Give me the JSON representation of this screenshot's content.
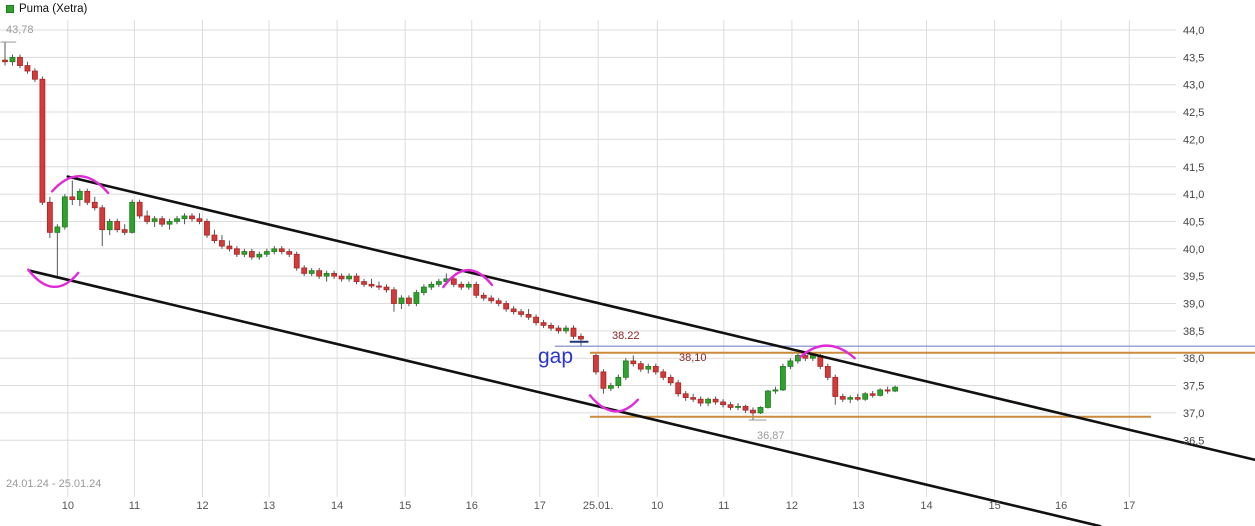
{
  "legend": {
    "title": "Puma (Xetra)"
  },
  "annotations": {
    "high_label": "43,78",
    "low_label": "36,87",
    "gap_label": "gap",
    "blue_level_label": "38.22",
    "orange_level_label": "38,10",
    "date_range": "24.01.24 - 25.01.24"
  },
  "chart_data": {
    "type": "candlestick",
    "title": "Puma (Xetra)",
    "timeframe_shown": "24.01.24 - 25.01.24",
    "legend_position": "top-left",
    "grid": true,
    "ylim": [
      35.9,
      44.15
    ],
    "y_axis": {
      "ticks": [
        {
          "v": 44.0,
          "text": "44,0"
        },
        {
          "v": 43.5,
          "text": "43,5"
        },
        {
          "v": 43.0,
          "text": "43,0"
        },
        {
          "v": 42.5,
          "text": "42,5"
        },
        {
          "v": 42.0,
          "text": "42,0"
        },
        {
          "v": 41.5,
          "text": "41,5"
        },
        {
          "v": 41.0,
          "text": "41,0"
        },
        {
          "v": 40.5,
          "text": "40,5"
        },
        {
          "v": 40.0,
          "text": "40,0"
        },
        {
          "v": 39.5,
          "text": "39,5"
        },
        {
          "v": 39.0,
          "text": "39,0"
        },
        {
          "v": 38.5,
          "text": "38,5"
        },
        {
          "v": 38.0,
          "text": "38,0"
        },
        {
          "v": 37.5,
          "text": "37,5"
        },
        {
          "v": 37.0,
          "text": "37,0"
        },
        {
          "v": 36.5,
          "text": "36,5"
        }
      ]
    },
    "x_axis": {
      "labels": [
        {
          "text": "10",
          "pos": 8.4
        },
        {
          "text": "11",
          "pos": 17.3
        },
        {
          "text": "12",
          "pos": 26.4
        },
        {
          "text": "13",
          "pos": 35.3
        },
        {
          "text": "14",
          "pos": 44.4
        },
        {
          "text": "15",
          "pos": 53.5
        },
        {
          "text": "16",
          "pos": 62.4
        },
        {
          "text": "17",
          "pos": 71.5
        },
        {
          "text": "25.01.",
          "pos": 79.3
        },
        {
          "text": "10",
          "pos": 87.2
        },
        {
          "text": "11",
          "pos": 96.1
        },
        {
          "text": "12",
          "pos": 105.2
        },
        {
          "text": "13",
          "pos": 114.1
        },
        {
          "text": "14",
          "pos": 123.2
        },
        {
          "text": "15",
          "pos": 132.3
        },
        {
          "text": "16",
          "pos": 141.2
        },
        {
          "text": "17",
          "pos": 150.3
        }
      ]
    },
    "colors": {
      "up": "#2fa12f",
      "up_stroke": "#1e7e1e",
      "down": "#d23b3b",
      "down_stroke": "#a82626",
      "wick": "#555555",
      "grid": "#dcdcdc",
      "trend": "#111111",
      "arc": "#e02ad8",
      "blue_line": "#7a86c8",
      "navy_tick": "#223377",
      "orange_line": "#cc8a3d",
      "tick_gray": "#999999",
      "axis_text": "#444444",
      "x_text": "#555555"
    },
    "candles": [
      [
        0,
        43.45,
        43.78,
        43.35,
        43.42
      ],
      [
        1,
        43.42,
        43.55,
        43.35,
        43.5
      ],
      [
        2,
        43.5,
        43.55,
        43.3,
        43.35
      ],
      [
        3,
        43.35,
        43.42,
        43.2,
        43.25
      ],
      [
        4,
        43.25,
        43.3,
        43.05,
        43.1
      ],
      [
        5,
        43.1,
        43.15,
        40.8,
        40.85
      ],
      [
        6,
        40.85,
        40.95,
        40.2,
        40.3
      ],
      [
        7,
        40.3,
        40.45,
        39.5,
        40.4
      ],
      [
        8,
        40.4,
        41.0,
        40.35,
        40.95
      ],
      [
        9,
        40.95,
        41.25,
        40.8,
        40.9
      ],
      [
        10,
        40.9,
        41.1,
        40.78,
        41.05
      ],
      [
        11,
        41.05,
        41.1,
        40.8,
        40.85
      ],
      [
        12,
        40.85,
        40.95,
        40.7,
        40.75
      ],
      [
        13,
        40.75,
        40.8,
        40.05,
        40.35
      ],
      [
        14,
        40.35,
        40.55,
        40.25,
        40.5
      ],
      [
        15,
        40.5,
        40.55,
        40.3,
        40.35
      ],
      [
        16,
        40.35,
        40.45,
        40.25,
        40.3
      ],
      [
        17,
        40.3,
        40.9,
        40.28,
        40.85
      ],
      [
        18,
        40.85,
        40.9,
        40.55,
        40.6
      ],
      [
        19,
        40.6,
        40.7,
        40.45,
        40.5
      ],
      [
        20,
        40.5,
        40.6,
        40.4,
        40.55
      ],
      [
        21,
        40.55,
        40.6,
        40.4,
        40.45
      ],
      [
        22,
        40.45,
        40.55,
        40.35,
        40.5
      ],
      [
        23,
        40.5,
        40.6,
        40.45,
        40.55
      ],
      [
        24,
        40.55,
        40.65,
        40.45,
        40.6
      ],
      [
        25,
        40.6,
        40.65,
        40.5,
        40.55
      ],
      [
        26,
        40.55,
        40.65,
        40.45,
        40.5
      ],
      [
        27,
        40.5,
        40.55,
        40.2,
        40.25
      ],
      [
        28,
        40.25,
        40.35,
        40.1,
        40.15
      ],
      [
        29,
        40.15,
        40.25,
        40.0,
        40.05
      ],
      [
        30,
        40.05,
        40.15,
        39.95,
        40.0
      ],
      [
        31,
        40.0,
        40.05,
        39.85,
        39.9
      ],
      [
        32,
        39.9,
        40.0,
        39.85,
        39.95
      ],
      [
        33,
        39.95,
        40.0,
        39.8,
        39.85
      ],
      [
        34,
        39.85,
        39.95,
        39.8,
        39.9
      ],
      [
        35,
        39.9,
        40.0,
        39.85,
        39.95
      ],
      [
        36,
        39.95,
        40.05,
        39.9,
        40.0
      ],
      [
        37,
        40.0,
        40.05,
        39.9,
        39.95
      ],
      [
        38,
        39.95,
        40.0,
        39.85,
        39.9
      ],
      [
        39,
        39.9,
        39.95,
        39.6,
        39.65
      ],
      [
        40,
        39.65,
        39.7,
        39.5,
        39.55
      ],
      [
        41,
        39.55,
        39.65,
        39.5,
        39.6
      ],
      [
        42,
        39.6,
        39.65,
        39.45,
        39.5
      ],
      [
        43,
        39.5,
        39.6,
        39.4,
        39.55
      ],
      [
        44,
        39.55,
        39.6,
        39.45,
        39.5
      ],
      [
        45,
        39.5,
        39.55,
        39.4,
        39.45
      ],
      [
        46,
        39.45,
        39.55,
        39.4,
        39.5
      ],
      [
        47,
        39.5,
        39.55,
        39.35,
        39.4
      ],
      [
        48,
        39.4,
        39.45,
        39.3,
        39.35
      ],
      [
        49,
        39.35,
        39.45,
        39.28,
        39.32
      ],
      [
        50,
        39.32,
        39.4,
        39.25,
        39.3
      ],
      [
        51,
        39.3,
        39.35,
        39.2,
        39.25
      ],
      [
        52,
        39.25,
        39.3,
        38.85,
        39.0
      ],
      [
        53,
        39.0,
        39.15,
        38.9,
        39.1
      ],
      [
        54,
        39.1,
        39.15,
        38.95,
        39.0
      ],
      [
        55,
        39.0,
        39.25,
        38.95,
        39.2
      ],
      [
        56,
        39.2,
        39.35,
        39.15,
        39.3
      ],
      [
        57,
        39.3,
        39.4,
        39.25,
        39.35
      ],
      [
        58,
        39.35,
        39.45,
        39.3,
        39.4
      ],
      [
        59,
        39.4,
        39.55,
        39.35,
        39.45
      ],
      [
        60,
        39.45,
        39.5,
        39.3,
        39.35
      ],
      [
        61,
        39.35,
        39.4,
        39.25,
        39.3
      ],
      [
        62,
        39.3,
        39.4,
        39.25,
        39.35
      ],
      [
        63,
        39.35,
        39.4,
        39.1,
        39.15
      ],
      [
        64,
        39.15,
        39.2,
        39.05,
        39.1
      ],
      [
        65,
        39.1,
        39.15,
        39.0,
        39.05
      ],
      [
        66,
        39.05,
        39.1,
        38.95,
        39.0
      ],
      [
        67,
        39.0,
        39.05,
        38.85,
        38.9
      ],
      [
        68,
        38.9,
        38.95,
        38.8,
        38.85
      ],
      [
        69,
        38.85,
        38.9,
        38.75,
        38.8
      ],
      [
        70,
        38.8,
        38.9,
        38.7,
        38.75
      ],
      [
        71,
        38.75,
        38.8,
        38.6,
        38.65
      ],
      [
        72,
        38.65,
        38.7,
        38.55,
        38.6
      ],
      [
        73,
        38.6,
        38.65,
        38.5,
        38.55
      ],
      [
        74,
        38.55,
        38.6,
        38.45,
        38.5
      ],
      [
        75,
        38.5,
        38.6,
        38.45,
        38.55
      ],
      [
        76,
        38.55,
        38.6,
        38.35,
        38.4
      ],
      [
        77,
        38.4,
        38.45,
        38.22,
        38.35
      ],
      [
        79,
        38.05,
        38.08,
        37.7,
        37.75
      ],
      [
        80,
        37.75,
        37.8,
        37.35,
        37.45
      ],
      [
        81,
        37.45,
        37.55,
        37.4,
        37.5
      ],
      [
        82,
        37.5,
        37.7,
        37.45,
        37.65
      ],
      [
        83,
        37.65,
        38.0,
        37.6,
        37.95
      ],
      [
        84,
        37.95,
        38.05,
        37.85,
        37.9
      ],
      [
        85,
        37.9,
        37.95,
        37.75,
        37.8
      ],
      [
        86,
        37.8,
        37.9,
        37.72,
        37.85
      ],
      [
        87,
        37.85,
        37.9,
        37.7,
        37.75
      ],
      [
        88,
        37.75,
        37.8,
        37.6,
        37.65
      ],
      [
        89,
        37.65,
        37.7,
        37.5,
        37.55
      ],
      [
        90,
        37.55,
        37.6,
        37.3,
        37.35
      ],
      [
        91,
        37.35,
        37.4,
        37.22,
        37.28
      ],
      [
        92,
        37.28,
        37.35,
        37.2,
        37.25
      ],
      [
        93,
        37.25,
        37.3,
        37.12,
        37.18
      ],
      [
        94,
        37.18,
        37.28,
        37.12,
        37.25
      ],
      [
        95,
        37.25,
        37.3,
        37.15,
        37.2
      ],
      [
        96,
        37.2,
        37.25,
        37.1,
        37.15
      ],
      [
        97,
        37.15,
        37.2,
        37.05,
        37.1
      ],
      [
        98,
        37.1,
        37.18,
        37.05,
        37.12
      ],
      [
        99,
        37.12,
        37.15,
        37.0,
        37.05
      ],
      [
        100,
        37.05,
        37.1,
        36.87,
        37.0
      ],
      [
        101,
        37.0,
        37.12,
        36.98,
        37.1
      ],
      [
        102,
        37.1,
        37.42,
        37.08,
        37.4
      ],
      [
        103,
        37.4,
        37.48,
        37.35,
        37.42
      ],
      [
        104,
        37.42,
        37.9,
        37.4,
        37.85
      ],
      [
        105,
        37.85,
        38.0,
        37.8,
        37.95
      ],
      [
        106,
        37.95,
        38.1,
        37.9,
        38.05
      ],
      [
        107,
        38.05,
        38.1,
        37.95,
        38.0
      ],
      [
        108,
        38.0,
        38.08,
        37.95,
        38.05
      ],
      [
        109,
        38.05,
        38.08,
        37.8,
        37.85
      ],
      [
        110,
        37.85,
        37.9,
        37.6,
        37.65
      ],
      [
        111,
        37.65,
        37.7,
        37.15,
        37.3
      ],
      [
        112,
        37.3,
        37.35,
        37.2,
        37.25
      ],
      [
        113,
        37.25,
        37.32,
        37.18,
        37.28
      ],
      [
        114,
        37.28,
        37.35,
        37.22,
        37.25
      ],
      [
        115,
        37.25,
        37.38,
        37.22,
        37.35
      ],
      [
        116,
        37.35,
        37.4,
        37.28,
        37.32
      ],
      [
        117,
        37.32,
        37.45,
        37.3,
        37.42
      ],
      [
        118,
        37.42,
        37.48,
        37.35,
        37.4
      ],
      [
        119,
        37.4,
        37.5,
        37.38,
        37.47
      ]
    ],
    "h_lines": [
      {
        "name": "level-line-38.22",
        "price": 38.22,
        "s1": 73.5,
        "s2": 167.2,
        "color_key": "blue_line",
        "w": 1.2
      },
      {
        "name": "price-marker-38.22",
        "price": 38.3,
        "s1": 75.5,
        "s2": 78.0,
        "color_key": "navy_tick",
        "w": 2
      },
      {
        "name": "level-line-38.10",
        "price": 38.1,
        "s1": 78.2,
        "s2": 167.2,
        "color_key": "orange_line",
        "w": 2
      },
      {
        "name": "level-line-36.93",
        "price": 36.93,
        "s1": 78.2,
        "s2": 153.2,
        "color_key": "orange_line",
        "w": 2
      },
      {
        "name": "high-tick-43.78",
        "price": 43.78,
        "s1": -0.6,
        "s2": 1.5,
        "color_key": "tick_gray",
        "w": 1
      },
      {
        "name": "low-tick-36.87",
        "price": 36.87,
        "s1": 99.4,
        "s2": 101.8,
        "color_key": "tick_gray",
        "w": 1
      }
    ],
    "trend_lines": [
      {
        "name": "channel-upper",
        "s1": 8.4,
        "p1": 41.32,
        "s2": 167.2,
        "p2": 36.14,
        "w": 2.6
      },
      {
        "name": "channel-lower",
        "s1": 3.3,
        "p1": 39.6,
        "s2": 146.4,
        "p2": 34.93,
        "w": 2.6
      }
    ],
    "arcs": [
      {
        "name": "swing-low-arc-1",
        "s1": 3.1,
        "p1": 39.62,
        "cs": 6.5,
        "cp": 39.02,
        "s2": 9.8,
        "p2": 39.56
      },
      {
        "name": "swing-high-arc-1",
        "s1": 6.3,
        "p1": 41.05,
        "cs": 10.0,
        "cp": 41.62,
        "s2": 13.8,
        "p2": 41.02
      },
      {
        "name": "swing-high-arc-2",
        "s1": 58.6,
        "p1": 39.3,
        "cs": 61.8,
        "cp": 39.9,
        "s2": 65.1,
        "p2": 39.34
      },
      {
        "name": "swing-low-arc-2",
        "s1": 78.2,
        "p1": 37.32,
        "cs": 81.5,
        "cp": 36.78,
        "s2": 84.6,
        "p2": 37.24
      },
      {
        "name": "swing-high-arc-3",
        "s1": 106.3,
        "p1": 38.02,
        "cs": 109.9,
        "cp": 38.45,
        "s2": 113.6,
        "p2": 38.0
      }
    ]
  }
}
